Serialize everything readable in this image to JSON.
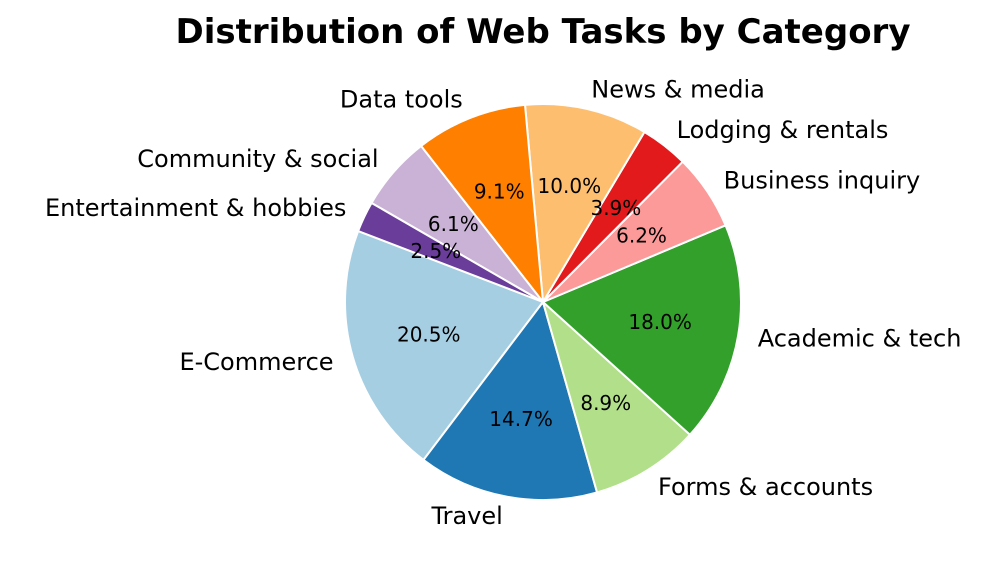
{
  "chart_data": {
    "type": "pie",
    "title": "Distribution of Web Tasks by Category",
    "slices": [
      {
        "label": "E-Commerce",
        "value": 20.5,
        "pct_label": "20.5%",
        "color": "#a6cee3"
      },
      {
        "label": "Travel",
        "value": 14.7,
        "pct_label": "14.7%",
        "color": "#1f78b4"
      },
      {
        "label": "Forms & accounts",
        "value": 8.9,
        "pct_label": "8.9%",
        "color": "#b2df8a"
      },
      {
        "label": "Academic & tech",
        "value": 18.0,
        "pct_label": "18.0%",
        "color": "#33a02c"
      },
      {
        "label": "Business inquiry",
        "value": 6.2,
        "pct_label": "6.2%",
        "color": "#fb9a99"
      },
      {
        "label": "Lodging & rentals",
        "value": 3.9,
        "pct_label": "3.9%",
        "color": "#e31a1c"
      },
      {
        "label": "News & media",
        "value": 10.0,
        "pct_label": "10.0%",
        "color": "#fdbf6f"
      },
      {
        "label": "Data tools",
        "value": 9.1,
        "pct_label": "9.1%",
        "color": "#ff7f00"
      },
      {
        "label": "Community & social",
        "value": 6.1,
        "pct_label": "6.1%",
        "color": "#cab2d6"
      },
      {
        "label": "Entertainment & hobbies",
        "value": 2.5,
        "pct_label": "2.5%",
        "color": "#6a3d9a"
      }
    ],
    "start_angle_deg": 159,
    "direction": "counterclockwise",
    "legend": "none"
  }
}
